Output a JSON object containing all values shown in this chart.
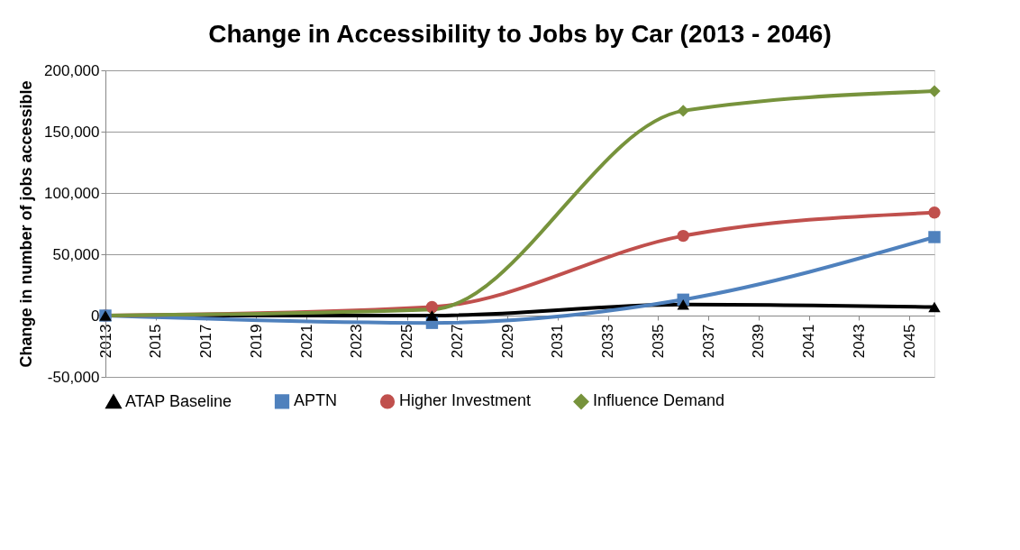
{
  "chart_data": {
    "type": "line",
    "title": "Change in Accessibility to Jobs by Car (2013 - 2046)",
    "ylabel": "Change in number of jobs accessible",
    "xlim": [
      2013,
      2046
    ],
    "xticks": [
      2013,
      2015,
      2017,
      2019,
      2021,
      2023,
      2025,
      2027,
      2029,
      2031,
      2033,
      2035,
      2037,
      2039,
      2041,
      2043,
      2045
    ],
    "ylim": [
      -50000,
      200000
    ],
    "yticks": [
      {
        "value": -50000,
        "label": "-50,000"
      },
      {
        "value": 0,
        "label": "0"
      },
      {
        "value": 50000,
        "label": "50,000"
      },
      {
        "value": 100000,
        "label": "100,000"
      },
      {
        "value": 150000,
        "label": "150,000"
      },
      {
        "value": 200000,
        "label": "200,000"
      }
    ],
    "grid": "y",
    "legend": "bottom",
    "line_style": "solid",
    "x": [
      2013,
      2026,
      2036,
      2046
    ],
    "series": [
      {
        "name": "ATAP Baseline",
        "color": "#000000",
        "marker": "triangle",
        "values": [
          0,
          0,
          9000,
          7000
        ]
      },
      {
        "name": "APTN",
        "color": "#4f81bd",
        "marker": "square",
        "values": [
          0,
          -6000,
          13000,
          64000
        ]
      },
      {
        "name": "Higher Investment",
        "color": "#c0504d",
        "marker": "circle",
        "values": [
          0,
          7000,
          65000,
          84000
        ]
      },
      {
        "name": "Influence Demand",
        "color": "#77933c",
        "marker": "diamond",
        "values": [
          0,
          5000,
          167000,
          183000
        ]
      }
    ]
  }
}
